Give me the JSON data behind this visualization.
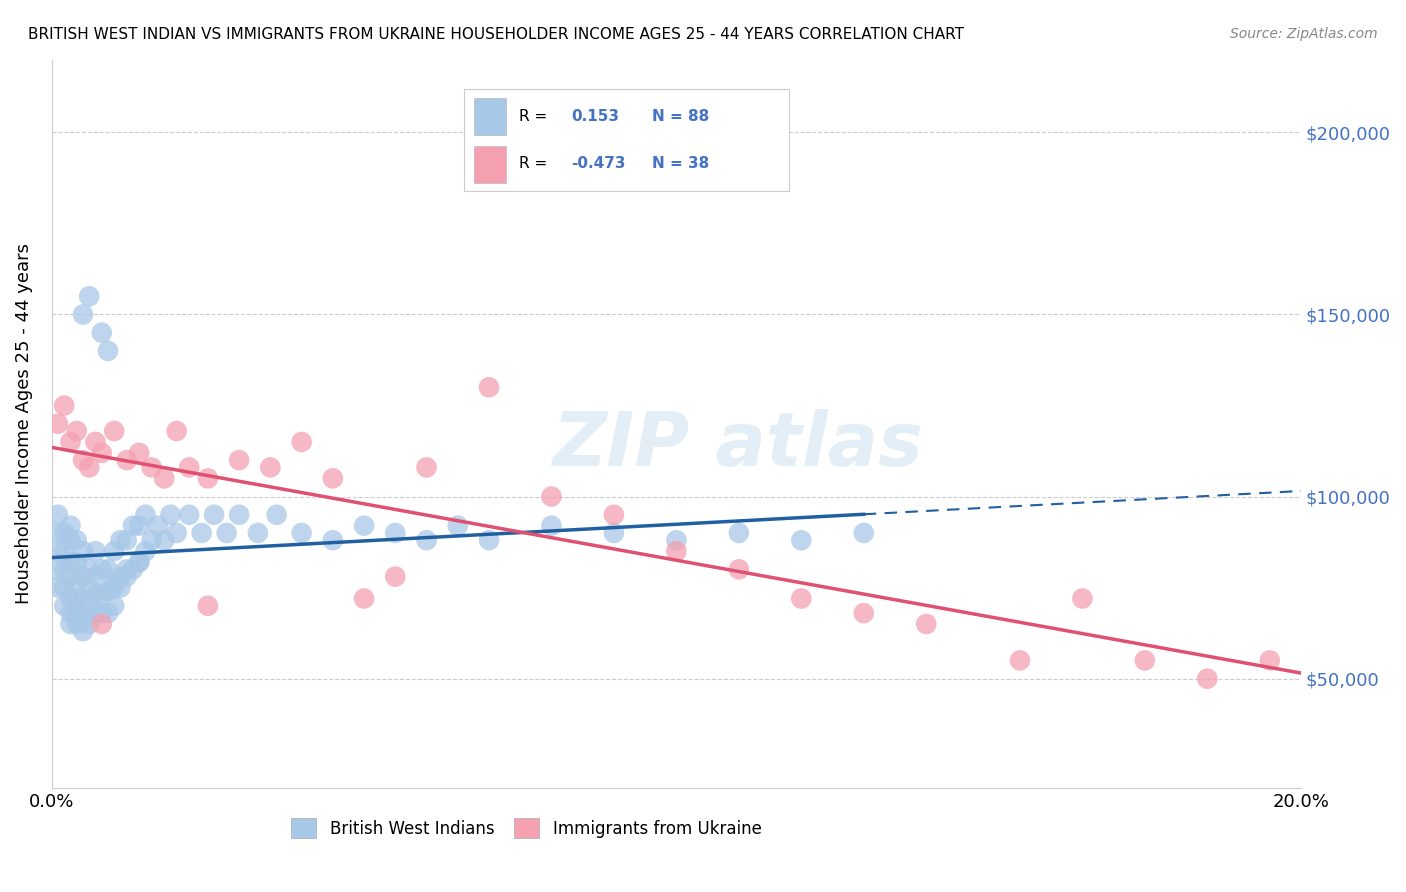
{
  "title": "BRITISH WEST INDIAN VS IMMIGRANTS FROM UKRAINE HOUSEHOLDER INCOME AGES 25 - 44 YEARS CORRELATION CHART",
  "source": "Source: ZipAtlas.com",
  "ylabel": "Householder Income Ages 25 - 44 years",
  "xlim": [
    0.0,
    0.2
  ],
  "ylim": [
    20000,
    220000
  ],
  "blue_R": 0.153,
  "blue_N": 88,
  "pink_R": -0.473,
  "pink_N": 38,
  "blue_color": "#a8c8e8",
  "pink_color": "#f4a0b0",
  "blue_line_color": "#2060a0",
  "pink_line_color": "#e05070",
  "legend_text_color": "#4472c4",
  "right_axis_color": "#4472c4",
  "blue_scatter_x": [
    0.0005,
    0.001,
    0.001,
    0.001,
    0.001,
    0.002,
    0.002,
    0.002,
    0.002,
    0.002,
    0.003,
    0.003,
    0.003,
    0.003,
    0.003,
    0.003,
    0.003,
    0.004,
    0.004,
    0.004,
    0.004,
    0.004,
    0.004,
    0.005,
    0.005,
    0.005,
    0.005,
    0.005,
    0.006,
    0.006,
    0.006,
    0.006,
    0.007,
    0.007,
    0.007,
    0.007,
    0.008,
    0.008,
    0.008,
    0.009,
    0.009,
    0.009,
    0.01,
    0.01,
    0.01,
    0.011,
    0.011,
    0.012,
    0.012,
    0.013,
    0.013,
    0.014,
    0.014,
    0.015,
    0.015,
    0.016,
    0.017,
    0.018,
    0.019,
    0.02,
    0.022,
    0.024,
    0.026,
    0.028,
    0.03,
    0.033,
    0.036,
    0.04,
    0.045,
    0.05,
    0.055,
    0.06,
    0.065,
    0.07,
    0.08,
    0.09,
    0.1,
    0.11,
    0.12,
    0.13,
    0.005,
    0.006,
    0.008,
    0.009,
    0.01,
    0.011,
    0.012,
    0.014
  ],
  "blue_scatter_y": [
    80000,
    90000,
    75000,
    85000,
    95000,
    70000,
    75000,
    80000,
    85000,
    90000,
    65000,
    68000,
    72000,
    78000,
    82000,
    88000,
    92000,
    65000,
    68000,
    72000,
    76000,
    82000,
    88000,
    63000,
    67000,
    72000,
    78000,
    85000,
    65000,
    70000,
    75000,
    80000,
    68000,
    73000,
    78000,
    85000,
    68000,
    73000,
    80000,
    68000,
    74000,
    80000,
    70000,
    76000,
    85000,
    75000,
    88000,
    78000,
    88000,
    80000,
    92000,
    82000,
    92000,
    85000,
    95000,
    88000,
    92000,
    88000,
    95000,
    90000,
    95000,
    90000,
    95000,
    90000,
    95000,
    90000,
    95000,
    90000,
    88000,
    92000,
    90000,
    88000,
    92000,
    88000,
    92000,
    90000,
    88000,
    90000,
    88000,
    90000,
    150000,
    155000,
    145000,
    140000,
    75000,
    78000,
    80000,
    82000
  ],
  "pink_scatter_x": [
    0.001,
    0.002,
    0.003,
    0.004,
    0.005,
    0.006,
    0.007,
    0.008,
    0.01,
    0.012,
    0.014,
    0.016,
    0.018,
    0.02,
    0.022,
    0.025,
    0.03,
    0.035,
    0.04,
    0.045,
    0.05,
    0.055,
    0.06,
    0.07,
    0.08,
    0.09,
    0.1,
    0.11,
    0.12,
    0.13,
    0.14,
    0.155,
    0.165,
    0.175,
    0.185,
    0.195,
    0.008,
    0.025
  ],
  "pink_scatter_y": [
    120000,
    125000,
    115000,
    118000,
    110000,
    108000,
    115000,
    112000,
    118000,
    110000,
    112000,
    108000,
    105000,
    118000,
    108000,
    105000,
    110000,
    108000,
    115000,
    105000,
    72000,
    78000,
    108000,
    130000,
    100000,
    95000,
    85000,
    80000,
    72000,
    68000,
    65000,
    55000,
    72000,
    55000,
    50000,
    55000,
    65000,
    70000
  ]
}
